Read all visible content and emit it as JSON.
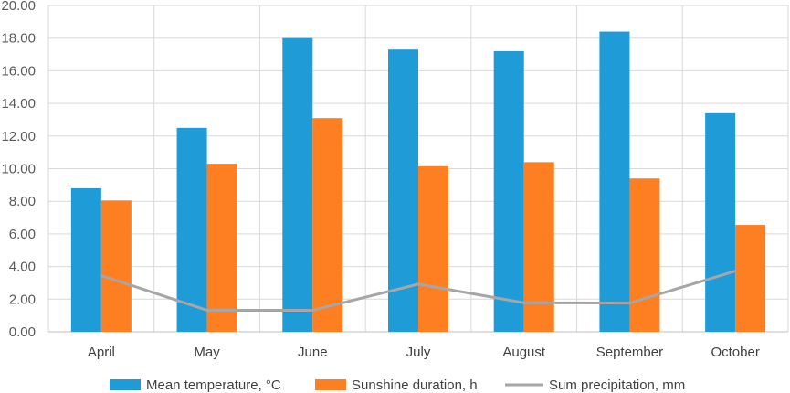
{
  "chart_data": {
    "type": "bar",
    "title": "",
    "xlabel": "",
    "ylabel": "",
    "ylim": [
      0,
      20
    ],
    "ytick_step": 2,
    "ytick_labels": [
      "0.00",
      "2.00",
      "4.00",
      "6.00",
      "8.00",
      "10.00",
      "12.00",
      "14.00",
      "16.00",
      "18.00",
      "20.00"
    ],
    "grid": true,
    "legend_position": "bottom",
    "categories": [
      "April",
      "May",
      "June",
      "July",
      "August",
      "September",
      "October"
    ],
    "series": [
      {
        "name": "Mean temperature, °C",
        "type": "bar",
        "color": "#1f9bd7",
        "values": [
          8.8,
          12.5,
          18.0,
          17.3,
          17.2,
          18.4,
          13.4
        ]
      },
      {
        "name": "Sunshine duration, h",
        "type": "bar",
        "color": "#fd7f22",
        "values": [
          8.05,
          10.3,
          13.1,
          10.15,
          10.4,
          9.4,
          6.55
        ]
      },
      {
        "name": "Sum precipitation, mm",
        "type": "line",
        "color": "#a6a6a6",
        "values": [
          3.45,
          1.32,
          1.32,
          2.92,
          1.78,
          1.76,
          3.72
        ]
      }
    ]
  }
}
